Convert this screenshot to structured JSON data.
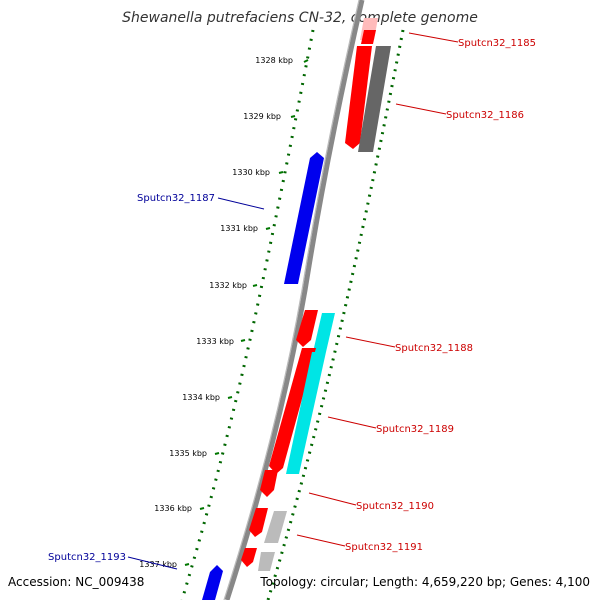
{
  "title": "Shewanella putrefaciens CN-32, complete genome",
  "footer": {
    "accession": "Accession: NC_009438",
    "topology": "Topology: circular; Length: 4,659,220 bp; Genes: 4,100"
  },
  "ticks": [
    "1328 kbp",
    "1329 kbp",
    "1330 kbp",
    "1331 kbp",
    "1332 kbp",
    "1333 kbp",
    "1334 kbp",
    "1335 kbp",
    "1336 kbp",
    "1337 kbp"
  ],
  "gene_labels": {
    "g1185": "Sputcn32_1185",
    "g1186": "Sputcn32_1186",
    "g1187": "Sputcn32_1187",
    "g1188": "Sputcn32_1188",
    "g1189": "Sputcn32_1189",
    "g1190": "Sputcn32_1190",
    "g1191": "Sputcn32_1191",
    "g1193": "Sputcn32_1193"
  },
  "colors": {
    "forward_gene": "#ff0000",
    "reverse_gene": "#0000ff",
    "cyan_feature": "#00e5e5",
    "gray_feature": "#666666",
    "light_gray_feature": "#bbbbbb",
    "backbone": "#888888",
    "tick_green": "#007700"
  }
}
